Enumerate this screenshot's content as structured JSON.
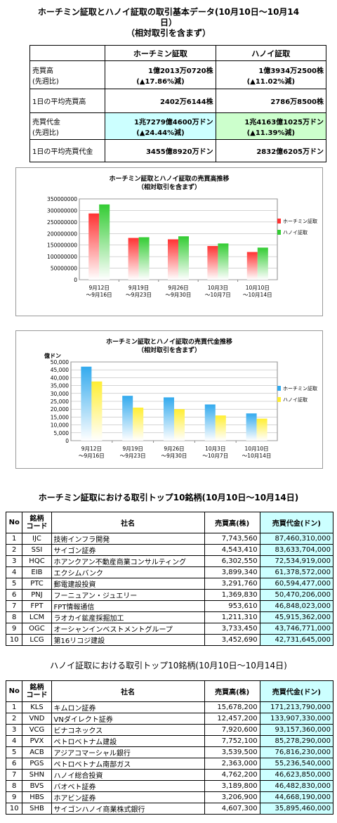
{
  "header": {
    "title_line1": "ホーチミン証取とハノイ証取の取引基本データ(10月10日～10月14",
    "title_line2": "日）",
    "subtitle": "（相対取引を含まず）"
  },
  "summary": {
    "col_hcm": "ホーチミン証取",
    "col_hn": "ハノイ証取",
    "rows": [
      {
        "label1": "売買高",
        "label2": "(先週比)",
        "hcm1": "1億2013万0720株",
        "hcm2": "(▲17.86%減)",
        "hn1": "1億3934万2500株",
        "hn2": "(▲11.02%減)"
      },
      {
        "label1": "1日の平均売買高",
        "hcm1": "2402万6144株",
        "hn1": "2786万8500株"
      },
      {
        "label1": "売買代金",
        "label2": "(先週比)",
        "hcm1": "1兆7279億4600万ドン",
        "hcm2": "(▲24.44%減)",
        "hn1": "1兆4163億1025万ドン",
        "hn2": "(▲11.39%減)"
      },
      {
        "label1": "1日の平均売買代金",
        "hcm1": "3455億8920万ドン",
        "hn1": "2832億6205万ドン"
      }
    ]
  },
  "chart_data": [
    {
      "type": "bar",
      "title": "ホーチミン証取とハノイ証取の売買高推移",
      "subtitle": "（相対取引を含まず）",
      "categories": [
        [
          "9月12日",
          "～9月16日"
        ],
        [
          "9月19日",
          "～9月23日"
        ],
        [
          "9月26日",
          "～9月30日"
        ],
        [
          "10月3日",
          "～10月7日"
        ],
        [
          "10月10日",
          "～10月14日"
        ]
      ],
      "ylim": [
        0,
        350000000
      ],
      "yticks": [
        "0",
        "50000000",
        "100000000",
        "150000000",
        "200000000",
        "250000000",
        "300000000",
        "350000000"
      ],
      "ylabel": "",
      "series": [
        {
          "name": "ホーチミン証取",
          "values": [
            287000000,
            181000000,
            175000000,
            146000000,
            120000000
          ],
          "color": "#ff3333"
        },
        {
          "name": "ハノイ証取",
          "values": [
            326000000,
            184000000,
            188000000,
            157000000,
            139000000
          ],
          "color": "#33cc33"
        }
      ]
    },
    {
      "type": "bar",
      "title": "ホーチミン証取とハノイ証取の売買代金推移",
      "subtitle": "（相対取引を含まず）",
      "categories": [
        [
          "9月12日",
          "～9月16日"
        ],
        [
          "9月19日",
          "～9月23日"
        ],
        [
          "9月26日",
          "～9月30日"
        ],
        [
          "10月3日",
          "～10月7日"
        ],
        [
          "10月10日",
          "～10月14日"
        ]
      ],
      "ylim": [
        0,
        50000
      ],
      "yticks": [
        "0",
        "5,000",
        "10,000",
        "15,000",
        "20,000",
        "25,000",
        "30,000",
        "35,000",
        "40,000",
        "45,000",
        "50,000"
      ],
      "ylabel": "億ドン",
      "series": [
        {
          "name": "ホーチミン証取",
          "values": [
            47000,
            28500,
            27500,
            23000,
            17300
          ],
          "color": "#33aaee"
        },
        {
          "name": "ハノイ証取",
          "values": [
            37600,
            21000,
            20000,
            16000,
            14000
          ],
          "color": "#ffee33"
        }
      ]
    }
  ],
  "hcm_top": {
    "title": "ホーチミン証取における取引トップ10銘柄(10月10日～10月14日)",
    "headers": {
      "no": "No",
      "code1": "銘柄",
      "code2": "コード",
      "name": "社名",
      "volume": "売買高(株)",
      "value": "売買代金(ドン)"
    },
    "rows": [
      {
        "no": "1",
        "code": "IJC",
        "name": "技術インフラ開発",
        "volume": "7,743,560",
        "value": "87,460,310,000"
      },
      {
        "no": "2",
        "code": "SSI",
        "name": "サイゴン証券",
        "volume": "4,543,410",
        "value": "83,633,704,000"
      },
      {
        "no": "3",
        "code": "HQC",
        "name": "ホアンクアン不動産商業コンサルティング",
        "volume": "6,302,550",
        "value": "72,534,919,000"
      },
      {
        "no": "4",
        "code": "EIB",
        "name": "エクシムバンク",
        "volume": "3,899,340",
        "value": "61,378,572,000"
      },
      {
        "no": "5",
        "code": "PTC",
        "name": "郵電建設投資",
        "volume": "3,291,760",
        "value": "60,594,477,000"
      },
      {
        "no": "6",
        "code": "PNJ",
        "name": "フーニュアン・ジュエリー",
        "volume": "1,369,830",
        "value": "50,470,206,000"
      },
      {
        "no": "7",
        "code": "FPT",
        "name": "FPT情報通信",
        "volume": "953,610",
        "value": "46,848,023,000"
      },
      {
        "no": "8",
        "code": "LCM",
        "name": "ラオカイ鉱産採掘加工",
        "volume": "1,211,310",
        "value": "45,915,362,000"
      },
      {
        "no": "9",
        "code": "OGC",
        "name": "オーシャンインベストメントグループ",
        "volume": "3,733,450",
        "value": "43,746,771,000"
      },
      {
        "no": "10",
        "code": "LCG",
        "name": "第16リコジ建設",
        "volume": "3,452,690",
        "value": "42,731,645,000"
      }
    ]
  },
  "hn_top": {
    "title": "ハノイ証取における取引トップ10銘柄(10月10日～10月14日)",
    "headers": {
      "no": "No",
      "code1": "銘柄",
      "code2": "コード",
      "name": "社名",
      "volume": "売買高(株)",
      "value": "売買代金(ドン)"
    },
    "rows": [
      {
        "no": "1",
        "code": "KLS",
        "name": "キムロン証券",
        "volume": "15,678,200",
        "value": "171,213,790,000"
      },
      {
        "no": "2",
        "code": "VND",
        "name": "VNダイレクト証券",
        "volume": "12,457,200",
        "value": "133,907,330,000"
      },
      {
        "no": "3",
        "code": "VCG",
        "name": "ビナコネックス",
        "volume": "7,920,600",
        "value": "93,157,360,000"
      },
      {
        "no": "4",
        "code": "PVX",
        "name": "ペトロベトナム建設",
        "volume": "7,752,100",
        "value": "85,278,290,000"
      },
      {
        "no": "5",
        "code": "ACB",
        "name": "アジアコマーシャル銀行",
        "volume": "3,539,500",
        "value": "76,816,230,000"
      },
      {
        "no": "6",
        "code": "PGS",
        "name": "ペトロベトナム南部ガス",
        "volume": "2,363,000",
        "value": "55,236,540,000"
      },
      {
        "no": "7",
        "code": "SHN",
        "name": "ハノイ総合投資",
        "volume": "4,762,200",
        "value": "46,623,850,000"
      },
      {
        "no": "8",
        "code": "BVS",
        "name": "バオベト証券",
        "volume": "3,189,800",
        "value": "46,482,830,000"
      },
      {
        "no": "9",
        "code": "HBS",
        "name": "ホアビン証券",
        "volume": "3,206,900",
        "value": "44,668,190,000"
      },
      {
        "no": "10",
        "code": "SHB",
        "name": "サイゴンハノイ商業株式銀行",
        "volume": "4,607,300",
        "value": "35,895,460,000"
      }
    ]
  }
}
